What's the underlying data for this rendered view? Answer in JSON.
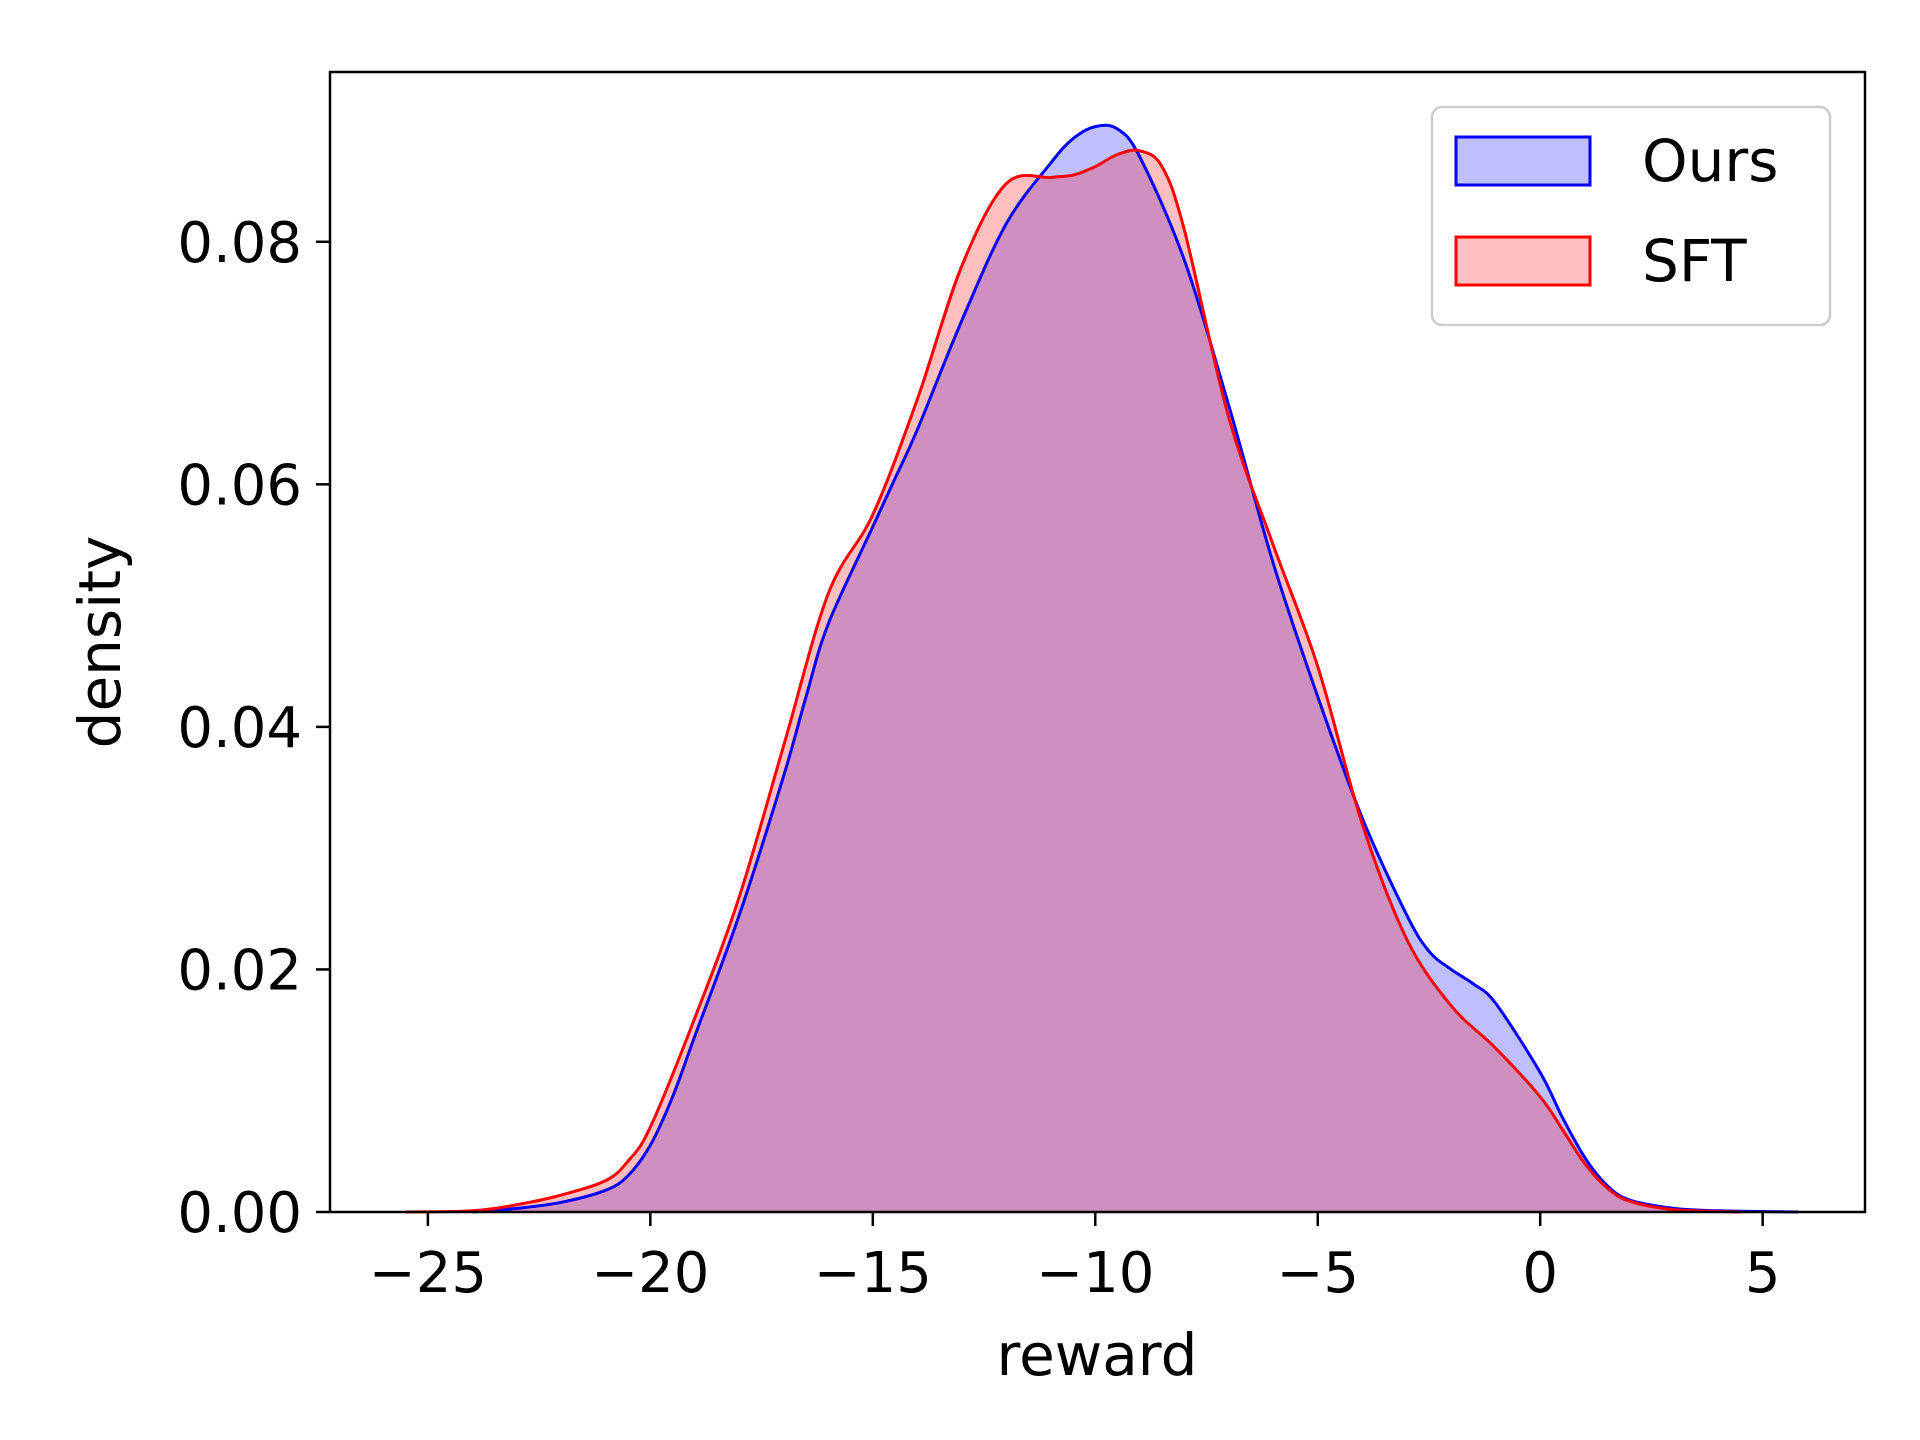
{
  "chart_data": {
    "type": "area",
    "title": "",
    "xlabel": "reward",
    "ylabel": "density",
    "xlim": [
      -27.2,
      7.3
    ],
    "ylim": [
      0,
      0.094
    ],
    "grid": false,
    "legend_position": "top-right",
    "xticks": [
      -25,
      -20,
      -15,
      -10,
      -5,
      0,
      5
    ],
    "xtick_labels": [
      "−25",
      "−20",
      "−15",
      "−10",
      "−5",
      "0",
      "5"
    ],
    "yticks": [
      0,
      0.02,
      0.04,
      0.06,
      0.08
    ],
    "ytick_labels": [
      "0.00",
      "0.02",
      "0.04",
      "0.06",
      "0.08"
    ],
    "series": [
      {
        "name": "Ours",
        "line_color": "#0000ff",
        "fill_color": "rgba(0,0,255,0.25)",
        "points": [
          [
            -24.0,
            0.0
          ],
          [
            -23.0,
            0.0003
          ],
          [
            -22.0,
            0.0008
          ],
          [
            -21.0,
            0.0018
          ],
          [
            -20.5,
            0.003
          ],
          [
            -20.0,
            0.0055
          ],
          [
            -19.5,
            0.0095
          ],
          [
            -19.0,
            0.0145
          ],
          [
            -18.0,
            0.0245
          ],
          [
            -17.0,
            0.036
          ],
          [
            -16.5,
            0.0425
          ],
          [
            -16.0,
            0.0485
          ],
          [
            -15.0,
            0.0565
          ],
          [
            -14.5,
            0.0605
          ],
          [
            -14.0,
            0.0645
          ],
          [
            -13.0,
            0.0735
          ],
          [
            -12.0,
            0.0815
          ],
          [
            -11.0,
            0.0865
          ],
          [
            -10.5,
            0.0885
          ],
          [
            -10.0,
            0.0895
          ],
          [
            -9.5,
            0.0893
          ],
          [
            -9.0,
            0.087
          ],
          [
            -8.0,
            0.0785
          ],
          [
            -7.0,
            0.0665
          ],
          [
            -6.0,
            0.0535
          ],
          [
            -5.0,
            0.0425
          ],
          [
            -4.0,
            0.0325
          ],
          [
            -3.0,
            0.0245
          ],
          [
            -2.5,
            0.0215
          ],
          [
            -2.0,
            0.02
          ],
          [
            -1.5,
            0.0188
          ],
          [
            -1.0,
            0.0172
          ],
          [
            0.0,
            0.0115
          ],
          [
            0.5,
            0.0078
          ],
          [
            1.0,
            0.0045
          ],
          [
            1.5,
            0.0022
          ],
          [
            2.0,
            0.001
          ],
          [
            3.0,
            0.0003
          ],
          [
            4.0,
            0.0001
          ],
          [
            5.8,
            0.0
          ]
        ]
      },
      {
        "name": "SFT",
        "line_color": "#ff0000",
        "fill_color": "rgba(255,0,0,0.25)",
        "points": [
          [
            -25.5,
            0.0
          ],
          [
            -24.0,
            0.0001
          ],
          [
            -23.0,
            0.0006
          ],
          [
            -22.0,
            0.0014
          ],
          [
            -21.0,
            0.0026
          ],
          [
            -20.5,
            0.0042
          ],
          [
            -20.0,
            0.007
          ],
          [
            -19.0,
            0.016
          ],
          [
            -18.0,
            0.026
          ],
          [
            -17.0,
            0.0385
          ],
          [
            -16.0,
            0.051
          ],
          [
            -15.0,
            0.0575
          ],
          [
            -14.0,
            0.067
          ],
          [
            -13.0,
            0.078
          ],
          [
            -12.0,
            0.0848
          ],
          [
            -11.0,
            0.0853
          ],
          [
            -10.5,
            0.0855
          ],
          [
            -10.0,
            0.0862
          ],
          [
            -9.5,
            0.0872
          ],
          [
            -9.0,
            0.0875
          ],
          [
            -8.5,
            0.0862
          ],
          [
            -8.0,
            0.081
          ],
          [
            -7.0,
            0.0655
          ],
          [
            -6.0,
            0.055
          ],
          [
            -5.0,
            0.045
          ],
          [
            -4.0,
            0.032
          ],
          [
            -3.0,
            0.0225
          ],
          [
            -2.0,
            0.017
          ],
          [
            -1.0,
            0.0135
          ],
          [
            0.0,
            0.0095
          ],
          [
            0.5,
            0.0068
          ],
          [
            1.0,
            0.004
          ],
          [
            1.5,
            0.002
          ],
          [
            2.0,
            0.0009
          ],
          [
            3.0,
            0.0002
          ],
          [
            4.5,
            0.0
          ]
        ]
      }
    ]
  }
}
